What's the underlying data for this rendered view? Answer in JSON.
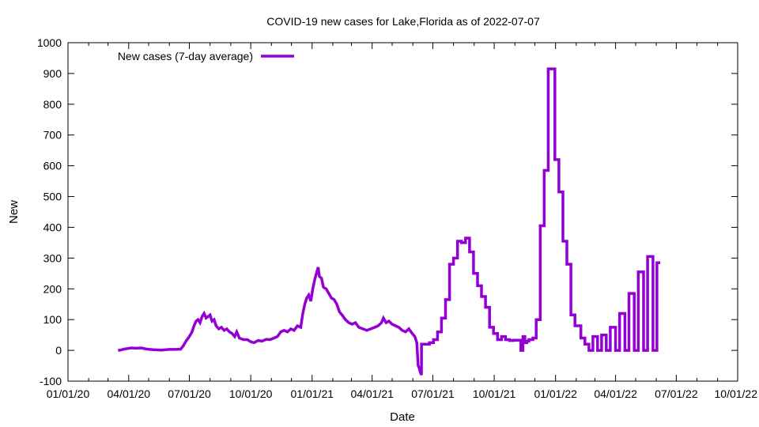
{
  "chart_data": {
    "type": "line",
    "title": "COVID-19 new cases for Lake,Florida as of 2022-07-07",
    "xlabel": "Date",
    "ylabel": "New",
    "legend_position": "top-left",
    "grid": false,
    "xlim": [
      "2020-01-01",
      "2022-10-01"
    ],
    "ylim": [
      -100,
      1000
    ],
    "x_tick_labels": [
      "01/01/20",
      "04/01/20",
      "07/01/20",
      "10/01/20",
      "01/01/21",
      "04/01/21",
      "07/01/21",
      "10/01/21",
      "01/01/22",
      "04/01/22",
      "07/01/22",
      "10/01/22"
    ],
    "y_ticks": [
      -100,
      0,
      100,
      200,
      300,
      400,
      500,
      600,
      700,
      800,
      900,
      1000
    ],
    "series": [
      {
        "name": "New cases (7-day average)",
        "color": "#9400d3",
        "points": [
          [
            "2020-03-16",
            0
          ],
          [
            "2020-03-20",
            1
          ],
          [
            "2020-03-25",
            4
          ],
          [
            "2020-03-30",
            6
          ],
          [
            "2020-04-05",
            8
          ],
          [
            "2020-04-12",
            7
          ],
          [
            "2020-04-20",
            8
          ],
          [
            "2020-04-28",
            4
          ],
          [
            "2020-05-08",
            2
          ],
          [
            "2020-05-20",
            1
          ],
          [
            "2020-06-01",
            3
          ],
          [
            "2020-06-10",
            3
          ],
          [
            "2020-06-18",
            4
          ],
          [
            "2020-06-22",
            15
          ],
          [
            "2020-06-26",
            30
          ],
          [
            "2020-07-01",
            45
          ],
          [
            "2020-07-05",
            60
          ],
          [
            "2020-07-08",
            80
          ],
          [
            "2020-07-11",
            95
          ],
          [
            "2020-07-14",
            100
          ],
          [
            "2020-07-17",
            90
          ],
          [
            "2020-07-20",
            110
          ],
          [
            "2020-07-23",
            120
          ],
          [
            "2020-07-26",
            105
          ],
          [
            "2020-07-29",
            110
          ],
          [
            "2020-08-01",
            115
          ],
          [
            "2020-08-04",
            95
          ],
          [
            "2020-08-07",
            100
          ],
          [
            "2020-08-10",
            80
          ],
          [
            "2020-08-14",
            70
          ],
          [
            "2020-08-18",
            75
          ],
          [
            "2020-08-22",
            65
          ],
          [
            "2020-08-26",
            70
          ],
          [
            "2020-08-30",
            60
          ],
          [
            "2020-09-03",
            55
          ],
          [
            "2020-09-07",
            45
          ],
          [
            "2020-09-10",
            60
          ],
          [
            "2020-09-14",
            40
          ],
          [
            "2020-09-20",
            35
          ],
          [
            "2020-09-26",
            35
          ],
          [
            "2020-10-01",
            28
          ],
          [
            "2020-10-06",
            25
          ],
          [
            "2020-10-12",
            32
          ],
          [
            "2020-10-18",
            30
          ],
          [
            "2020-10-24",
            36
          ],
          [
            "2020-10-30",
            35
          ],
          [
            "2020-11-05",
            40
          ],
          [
            "2020-11-10",
            45
          ],
          [
            "2020-11-15",
            60
          ],
          [
            "2020-11-20",
            65
          ],
          [
            "2020-11-25",
            60
          ],
          [
            "2020-11-30",
            70
          ],
          [
            "2020-12-05",
            65
          ],
          [
            "2020-12-10",
            80
          ],
          [
            "2020-12-15",
            75
          ],
          [
            "2020-12-18",
            120
          ],
          [
            "2020-12-21",
            150
          ],
          [
            "2020-12-24",
            170
          ],
          [
            "2020-12-27",
            180
          ],
          [
            "2020-12-30",
            160
          ],
          [
            "2021-01-02",
            200
          ],
          [
            "2021-01-05",
            230
          ],
          [
            "2021-01-08",
            255
          ],
          [
            "2021-01-10",
            270
          ],
          [
            "2021-01-12",
            240
          ],
          [
            "2021-01-15",
            235
          ],
          [
            "2021-01-18",
            205
          ],
          [
            "2021-01-22",
            200
          ],
          [
            "2021-01-26",
            185
          ],
          [
            "2021-01-30",
            170
          ],
          [
            "2021-02-03",
            165
          ],
          [
            "2021-02-07",
            150
          ],
          [
            "2021-02-11",
            125
          ],
          [
            "2021-02-15",
            115
          ],
          [
            "2021-02-20",
            100
          ],
          [
            "2021-02-25",
            90
          ],
          [
            "2021-03-02",
            85
          ],
          [
            "2021-03-07",
            90
          ],
          [
            "2021-03-12",
            75
          ],
          [
            "2021-03-18",
            70
          ],
          [
            "2021-03-24",
            65
          ],
          [
            "2021-03-30",
            70
          ],
          [
            "2021-04-05",
            75
          ],
          [
            "2021-04-10",
            80
          ],
          [
            "2021-04-15",
            90
          ],
          [
            "2021-04-18",
            105
          ],
          [
            "2021-04-22",
            90
          ],
          [
            "2021-04-26",
            95
          ],
          [
            "2021-05-01",
            85
          ],
          [
            "2021-05-06",
            80
          ],
          [
            "2021-05-11",
            75
          ],
          [
            "2021-05-16",
            65
          ],
          [
            "2021-05-21",
            60
          ],
          [
            "2021-05-26",
            70
          ],
          [
            "2021-05-31",
            55
          ],
          [
            "2021-06-04",
            45
          ],
          [
            "2021-06-07",
            25
          ],
          [
            "2021-06-09",
            -50
          ],
          [
            "2021-06-11",
            -60
          ],
          [
            "2021-06-12",
            -70
          ],
          [
            "2021-06-14",
            -80
          ],
          [
            "2021-06-14",
            20
          ],
          [
            "2021-06-20",
            20
          ],
          [
            "2021-06-26",
            20
          ],
          [
            "2021-06-26",
            25
          ],
          [
            "2021-07-02",
            25
          ],
          [
            "2021-07-02",
            35
          ],
          [
            "2021-07-08",
            35
          ],
          [
            "2021-07-08",
            60
          ],
          [
            "2021-07-14",
            60
          ],
          [
            "2021-07-14",
            105
          ],
          [
            "2021-07-20",
            105
          ],
          [
            "2021-07-20",
            165
          ],
          [
            "2021-07-26",
            165
          ],
          [
            "2021-07-26",
            280
          ],
          [
            "2021-08-01",
            280
          ],
          [
            "2021-08-01",
            300
          ],
          [
            "2021-08-07",
            300
          ],
          [
            "2021-08-07",
            355
          ],
          [
            "2021-08-13",
            355
          ],
          [
            "2021-08-13",
            350
          ],
          [
            "2021-08-19",
            350
          ],
          [
            "2021-08-19",
            365
          ],
          [
            "2021-08-25",
            365
          ],
          [
            "2021-08-25",
            320
          ],
          [
            "2021-08-31",
            320
          ],
          [
            "2021-08-31",
            250
          ],
          [
            "2021-09-06",
            250
          ],
          [
            "2021-09-06",
            210
          ],
          [
            "2021-09-12",
            210
          ],
          [
            "2021-09-12",
            175
          ],
          [
            "2021-09-18",
            175
          ],
          [
            "2021-09-18",
            140
          ],
          [
            "2021-09-24",
            140
          ],
          [
            "2021-09-24",
            75
          ],
          [
            "2021-09-30",
            75
          ],
          [
            "2021-09-30",
            55
          ],
          [
            "2021-10-06",
            55
          ],
          [
            "2021-10-06",
            35
          ],
          [
            "2021-10-12",
            35
          ],
          [
            "2021-10-12",
            45
          ],
          [
            "2021-10-18",
            45
          ],
          [
            "2021-10-18",
            35
          ],
          [
            "2021-10-24",
            35
          ],
          [
            "2021-10-24",
            32
          ],
          [
            "2021-10-30",
            32
          ],
          [
            "2021-10-30",
            33
          ],
          [
            "2021-11-05",
            33
          ],
          [
            "2021-11-10",
            33
          ],
          [
            "2021-11-10",
            0
          ],
          [
            "2021-11-13",
            0
          ],
          [
            "2021-11-13",
            45
          ],
          [
            "2021-11-16",
            45
          ],
          [
            "2021-11-16",
            25
          ],
          [
            "2021-11-19",
            25
          ],
          [
            "2021-11-19",
            30
          ],
          [
            "2021-11-22",
            30
          ],
          [
            "2021-11-22",
            35
          ],
          [
            "2021-11-28",
            35
          ],
          [
            "2021-11-28",
            40
          ],
          [
            "2021-12-03",
            40
          ],
          [
            "2021-12-03",
            100
          ],
          [
            "2021-12-09",
            100
          ],
          [
            "2021-12-09",
            405
          ],
          [
            "2021-12-15",
            405
          ],
          [
            "2021-12-15",
            585
          ],
          [
            "2021-12-21",
            585
          ],
          [
            "2021-12-21",
            915
          ],
          [
            "2021-12-31",
            915
          ],
          [
            "2021-12-31",
            620
          ],
          [
            "2022-01-06",
            620
          ],
          [
            "2022-01-06",
            515
          ],
          [
            "2022-01-12",
            515
          ],
          [
            "2022-01-12",
            355
          ],
          [
            "2022-01-18",
            355
          ],
          [
            "2022-01-18",
            280
          ],
          [
            "2022-01-24",
            280
          ],
          [
            "2022-01-24",
            115
          ],
          [
            "2022-01-30",
            115
          ],
          [
            "2022-01-30",
            80
          ],
          [
            "2022-02-08",
            80
          ],
          [
            "2022-02-08",
            40
          ],
          [
            "2022-02-14",
            40
          ],
          [
            "2022-02-14",
            20
          ],
          [
            "2022-02-20",
            20
          ],
          [
            "2022-02-20",
            0
          ],
          [
            "2022-02-26",
            0
          ],
          [
            "2022-02-26",
            45
          ],
          [
            "2022-03-05",
            45
          ],
          [
            "2022-03-05",
            0
          ],
          [
            "2022-03-11",
            0
          ],
          [
            "2022-03-11",
            50
          ],
          [
            "2022-03-18",
            50
          ],
          [
            "2022-03-18",
            0
          ],
          [
            "2022-03-24",
            0
          ],
          [
            "2022-03-24",
            75
          ],
          [
            "2022-04-01",
            75
          ],
          [
            "2022-04-01",
            0
          ],
          [
            "2022-04-07",
            0
          ],
          [
            "2022-04-07",
            120
          ],
          [
            "2022-04-15",
            120
          ],
          [
            "2022-04-15",
            0
          ],
          [
            "2022-04-21",
            0
          ],
          [
            "2022-04-21",
            185
          ],
          [
            "2022-04-29",
            185
          ],
          [
            "2022-04-29",
            0
          ],
          [
            "2022-05-05",
            0
          ],
          [
            "2022-05-05",
            255
          ],
          [
            "2022-05-13",
            255
          ],
          [
            "2022-05-13",
            0
          ],
          [
            "2022-05-19",
            0
          ],
          [
            "2022-05-19",
            305
          ],
          [
            "2022-05-27",
            305
          ],
          [
            "2022-05-27",
            0
          ],
          [
            "2022-06-02",
            0
          ],
          [
            "2022-06-02",
            285
          ],
          [
            "2022-06-07",
            285
          ]
        ]
      }
    ]
  }
}
